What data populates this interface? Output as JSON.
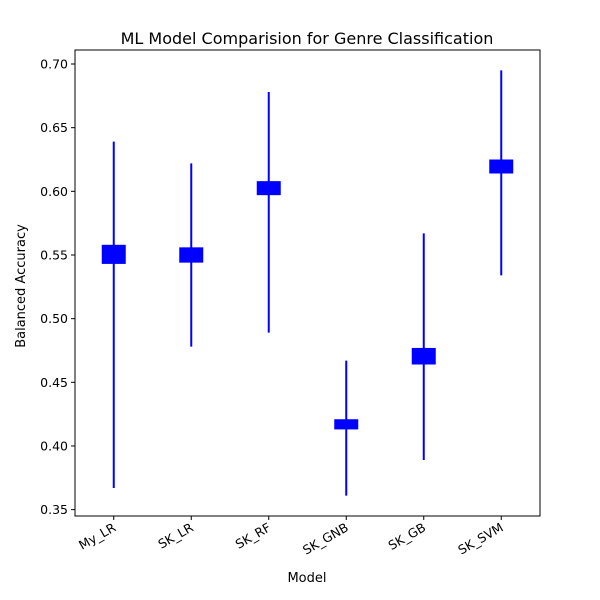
{
  "chart_data": {
    "type": "box",
    "title": "ML Model Comparision for Genre Classification",
    "xlabel": "Model",
    "ylabel": "Balanced Accuracy",
    "categories": [
      "My_LR",
      "SK_LR",
      "SK_RF",
      "SK_GNB",
      "SK_GB",
      "SK_SVM"
    ],
    "series": [
      {
        "color": "#0000ff",
        "boxes": [
          {
            "min": 0.367,
            "q1": 0.543,
            "q3": 0.558,
            "max": 0.639
          },
          {
            "min": 0.478,
            "q1": 0.544,
            "q3": 0.556,
            "max": 0.622
          },
          {
            "min": 0.489,
            "q1": 0.597,
            "q3": 0.608,
            "max": 0.678
          },
          {
            "min": 0.361,
            "q1": 0.413,
            "q3": 0.421,
            "max": 0.467
          },
          {
            "min": 0.389,
            "q1": 0.464,
            "q3": 0.477,
            "max": 0.567
          },
          {
            "min": 0.534,
            "q1": 0.614,
            "q3": 0.625,
            "max": 0.695
          }
        ]
      }
    ],
    "ylim": [
      0.345,
      0.711
    ],
    "yticks": [
      "0.35",
      "0.40",
      "0.45",
      "0.50",
      "0.55",
      "0.60",
      "0.65",
      "0.70"
    ],
    "grid": false
  }
}
